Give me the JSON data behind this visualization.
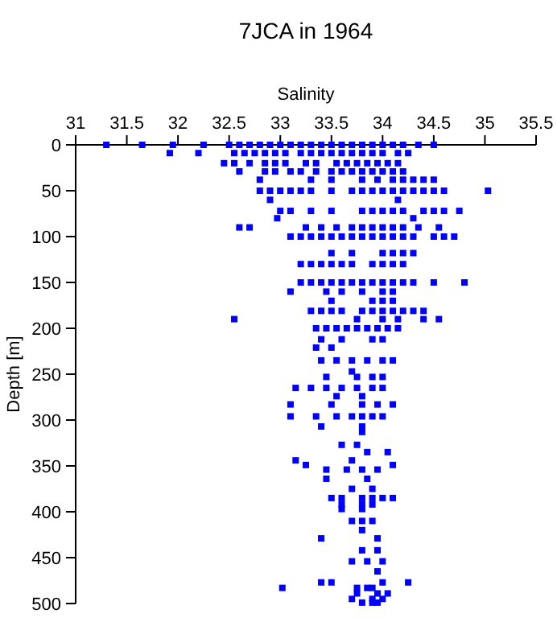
{
  "chart_data": {
    "type": "scatter",
    "title": "7JCA in 1964",
    "xlabel": "Salinity",
    "ylabel": "Depth [m]",
    "xlim": [
      31,
      35.5
    ],
    "xticks": [
      31,
      31.5,
      32,
      32.5,
      33,
      33.5,
      34,
      34.5,
      35,
      35.5
    ],
    "ylim": [
      500,
      0
    ],
    "yticks": [
      0,
      50,
      100,
      150,
      200,
      250,
      300,
      350,
      400,
      450,
      500
    ],
    "marker": "square",
    "series": [
      {
        "color": "#0000ff",
        "x": [
          31.3,
          31.65,
          31.95,
          32.25,
          32.5,
          32.6,
          32.7,
          32.8,
          32.9,
          33.0,
          33.1,
          33.2,
          33.3,
          33.4,
          33.5,
          33.6,
          33.7,
          33.8,
          33.9,
          34.0,
          34.1,
          34.2,
          34.35,
          34.5,
          31.92,
          32.2,
          32.55,
          32.65,
          32.75,
          32.85,
          32.95,
          33.05,
          33.2,
          33.3,
          33.4,
          33.5,
          33.6,
          33.7,
          33.8,
          33.9,
          34.0,
          34.15,
          34.25,
          32.45,
          32.55,
          32.7,
          32.85,
          32.95,
          33.05,
          33.25,
          33.35,
          33.55,
          33.65,
          33.75,
          33.85,
          33.95,
          34.05,
          34.15,
          32.6,
          32.85,
          32.95,
          33.1,
          33.2,
          33.35,
          33.5,
          33.6,
          33.7,
          33.8,
          33.9,
          34.0,
          34.1,
          34.2,
          32.8,
          33.3,
          33.5,
          33.8,
          33.95,
          34.1,
          34.2,
          34.3,
          34.4,
          34.5,
          32.8,
          32.9,
          33.0,
          33.1,
          33.2,
          33.3,
          33.5,
          33.7,
          33.8,
          33.9,
          34.0,
          34.1,
          34.2,
          34.3,
          34.4,
          34.5,
          34.6,
          35.03,
          32.9,
          34.15,
          33.0,
          33.1,
          33.3,
          33.5,
          33.8,
          33.9,
          34.0,
          34.1,
          34.2,
          34.4,
          34.5,
          34.6,
          34.75,
          32.97,
          34.3,
          32.6,
          32.7,
          33.25,
          33.4,
          33.55,
          33.7,
          33.8,
          33.9,
          34.0,
          34.1,
          34.2,
          34.35,
          34.55,
          33.1,
          33.2,
          33.3,
          33.4,
          33.5,
          33.6,
          33.7,
          33.8,
          33.9,
          34.0,
          34.1,
          34.2,
          34.3,
          34.5,
          34.6,
          34.7,
          33.5,
          33.7,
          34.0,
          34.1,
          34.2,
          34.3,
          33.2,
          33.3,
          33.4,
          33.5,
          33.6,
          33.7,
          33.9,
          34.0,
          34.1,
          34.2,
          33.2,
          33.3,
          33.4,
          33.5,
          33.6,
          33.7,
          33.8,
          33.9,
          34.0,
          34.1,
          34.2,
          34.3,
          34.5,
          34.8,
          33.1,
          33.45,
          33.6,
          33.8,
          34.0,
          34.1,
          33.5,
          33.9,
          34.0,
          34.1,
          33.3,
          33.4,
          33.5,
          33.6,
          33.8,
          33.9,
          34.0,
          34.1,
          34.2,
          34.3,
          34.4,
          32.55,
          33.75,
          34.0,
          34.15,
          34.4,
          34.55,
          33.35,
          33.45,
          33.55,
          33.65,
          33.75,
          33.85,
          33.95,
          34.05,
          34.15,
          33.4,
          33.6,
          33.9,
          34.0,
          33.35,
          33.5,
          33.4,
          33.55,
          33.7,
          33.85,
          34.0,
          34.1,
          33.7,
          33.45,
          33.75,
          33.9,
          34.0,
          33.15,
          33.3,
          33.45,
          33.6,
          33.75,
          33.9,
          34.0,
          33.55,
          33.8,
          33.1,
          33.5,
          33.8,
          33.95,
          34.1,
          33.1,
          33.35,
          33.55,
          33.7,
          33.8,
          33.9,
          34.0,
          33.4,
          33.8,
          33.8,
          33.6,
          33.75,
          33.85,
          34.05,
          33.15,
          33.7,
          33.25,
          34.1,
          33.45,
          33.65,
          33.8,
          33.95,
          33.45,
          33.85,
          33.7,
          33.9,
          33.5,
          33.6,
          33.8,
          33.9,
          34.0,
          34.1,
          33.6,
          33.8,
          33.9,
          33.6,
          33.8,
          33.7,
          33.8,
          33.9,
          33.8,
          33.4,
          33.95,
          33.8,
          33.95,
          33.7,
          33.85,
          34.0,
          33.95,
          33.4,
          33.5,
          34.0,
          34.25,
          33.02,
          33.75,
          33.85,
          33.9,
          33.75,
          33.95,
          34.05,
          33.7,
          33.9,
          34.0,
          33.8,
          33.9,
          33.95
        ],
        "values": [
          0,
          0,
          0,
          0,
          0,
          0,
          0,
          0,
          0,
          0,
          0,
          0,
          0,
          0,
          0,
          0,
          0,
          0,
          0,
          0,
          0,
          0,
          0,
          0,
          9,
          9,
          9,
          9,
          9,
          9,
          9,
          9,
          9,
          9,
          9,
          9,
          9,
          9,
          9,
          9,
          9,
          9,
          9,
          20,
          20,
          20,
          20,
          20,
          20,
          20,
          20,
          20,
          20,
          20,
          20,
          20,
          20,
          20,
          29,
          29,
          29,
          29,
          29,
          29,
          29,
          29,
          29,
          29,
          29,
          29,
          29,
          29,
          38,
          38,
          38,
          38,
          38,
          38,
          38,
          38,
          38,
          38,
          50,
          50,
          50,
          50,
          50,
          50,
          50,
          50,
          50,
          50,
          50,
          50,
          50,
          50,
          50,
          50,
          50,
          50,
          60,
          60,
          72,
          72,
          72,
          72,
          72,
          72,
          72,
          72,
          72,
          72,
          72,
          72,
          72,
          80,
          80,
          90,
          90,
          90,
          90,
          90,
          90,
          90,
          90,
          90,
          90,
          90,
          90,
          90,
          100,
          100,
          100,
          100,
          100,
          100,
          100,
          100,
          100,
          100,
          100,
          100,
          100,
          100,
          100,
          100,
          118,
          118,
          118,
          118,
          118,
          118,
          130,
          130,
          130,
          130,
          130,
          130,
          130,
          130,
          130,
          130,
          150,
          150,
          150,
          150,
          150,
          150,
          150,
          150,
          150,
          150,
          150,
          150,
          150,
          150,
          160,
          160,
          160,
          160,
          160,
          160,
          170,
          170,
          170,
          170,
          181,
          181,
          181,
          181,
          181,
          181,
          181,
          181,
          181,
          181,
          181,
          190,
          190,
          190,
          190,
          190,
          190,
          200,
          200,
          200,
          200,
          200,
          200,
          200,
          200,
          200,
          212,
          212,
          212,
          212,
          221,
          221,
          235,
          235,
          235,
          235,
          235,
          235,
          247,
          253,
          253,
          253,
          253,
          265,
          265,
          265,
          265,
          265,
          265,
          265,
          274,
          274,
          283,
          283,
          283,
          283,
          283,
          296,
          296,
          296,
          296,
          296,
          296,
          296,
          307,
          307,
          313,
          327,
          327,
          335,
          335,
          344,
          344,
          349,
          349,
          354,
          354,
          354,
          354,
          364,
          364,
          375,
          375,
          385,
          385,
          385,
          385,
          385,
          385,
          392,
          392,
          392,
          397,
          397,
          410,
          410,
          410,
          420,
          429,
          429,
          442,
          442,
          454,
          454,
          454,
          465,
          477,
          477,
          477,
          477,
          483,
          483,
          483,
          483,
          489,
          489,
          489,
          495,
          495,
          495,
          499,
          499,
          499
        ]
      }
    ]
  }
}
